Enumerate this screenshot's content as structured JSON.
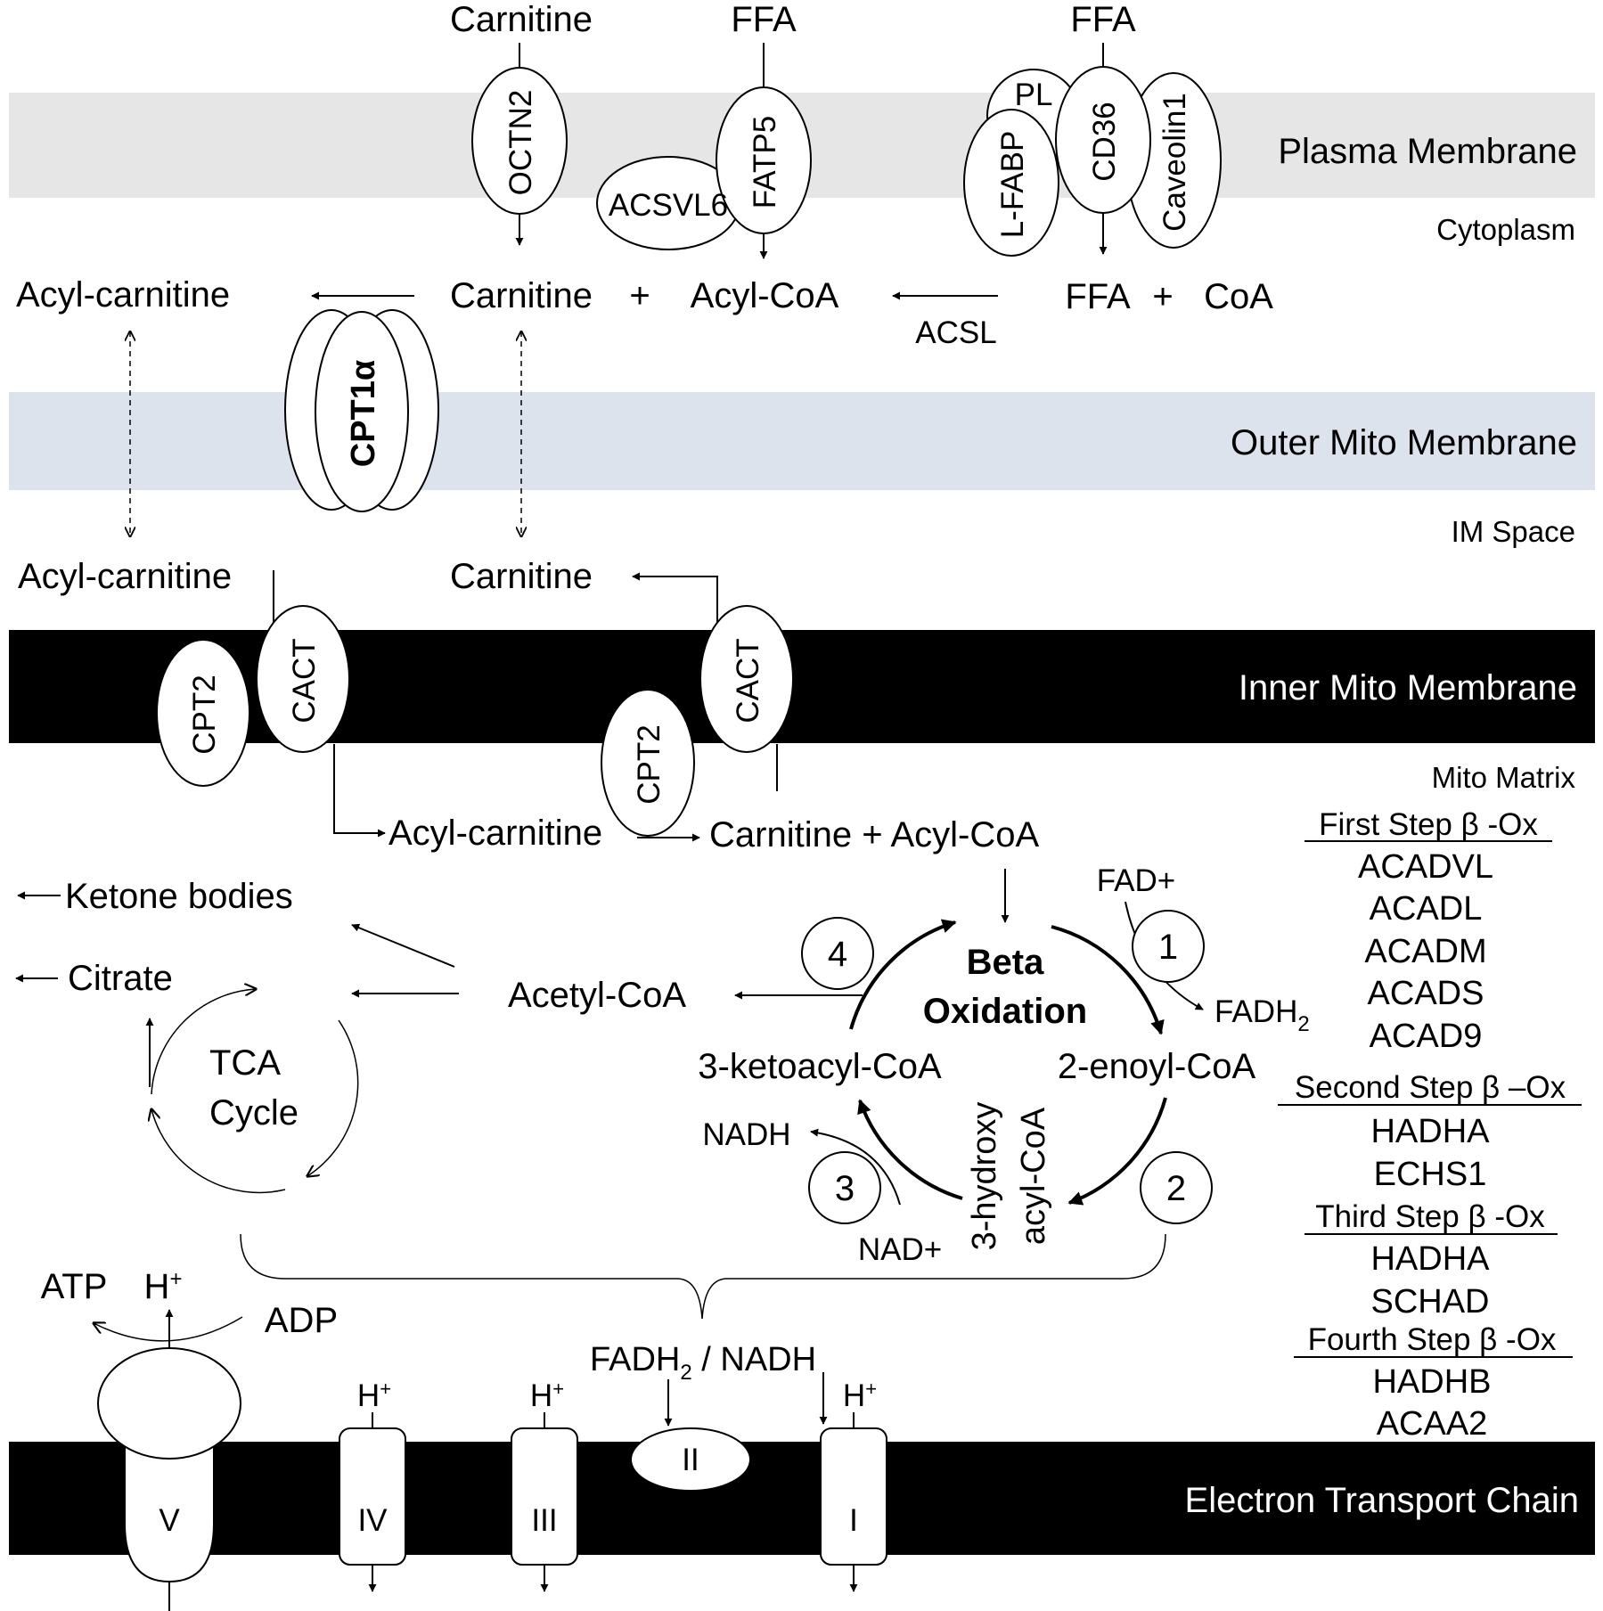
{
  "layers": {
    "plasma": "Plasma Membrane",
    "cytoplasm": "Cytoplasm",
    "outer": "Outer Mito Membrane",
    "im_space": "IM Space",
    "inner": "Inner Mito Membrane",
    "matrix": "Mito Matrix",
    "etc": "Electron Transport Chain"
  },
  "colors": {
    "plasma_band": "#e6e6e6",
    "outer_band": "#dde3ec",
    "inner_band": "#000000",
    "etc_band": "#000000"
  },
  "top": {
    "carnitine": "Carnitine",
    "ffa1": "FFA",
    "ffa2": "FFA",
    "octn2": "OCTN2",
    "fatp5": "FATP5",
    "acsvl6": "ACSVL6",
    "pl": "PL",
    "lfabp": "L-FABP",
    "cd36": "CD36",
    "caveolin1": "Caveolin1"
  },
  "cyto": {
    "acyl_carnitine": "Acyl-carnitine",
    "carnitine": "Carnitine",
    "plus1": "+",
    "acyl_coa": "Acyl-CoA",
    "ffa": "FFA",
    "plus2": "+",
    "coa": "CoA",
    "acsl": "ACSL",
    "cpt1a": "CPT1α"
  },
  "ims": {
    "acyl_carnitine": "Acyl-carnitine",
    "carnitine": "Carnitine",
    "cpt2_a": "CPT2",
    "cact_a": "CACT",
    "cpt2_b": "CPT2",
    "cact_b": "CACT"
  },
  "matrix": {
    "acyl_carnitine": "Acyl-carnitine",
    "carnitine_acyl_coa": "Carnitine + Acyl-CoA",
    "ketone": "Ketone bodies",
    "citrate": "Citrate",
    "tca1": "TCA",
    "tca2": "Cycle",
    "acetyl_coa": "Acetyl-CoA",
    "beta1": "Beta",
    "beta2": "Oxidation",
    "fad": "FAD+",
    "fadh": "FADH",
    "fadh_sub": "2",
    "enoyl": "2-enoyl-CoA",
    "ketoacyl": "3-ketoacyl-CoA",
    "hydroxy1": "3-hydroxy",
    "hydroxy2": "acyl-CoA",
    "nadh": "NADH",
    "nad": "NAD+",
    "step1": "1",
    "step2": "2",
    "step3": "3",
    "step4": "4"
  },
  "enzymes": {
    "first": "First Step β -Ox",
    "first_list": [
      "ACADVL",
      "ACADL",
      "ACADM",
      "ACADS",
      "ACAD9"
    ],
    "second": "Second Step β –Ox",
    "second_list": [
      "HADHA",
      "ECHS1"
    ],
    "third": "Third Step β -Ox",
    "third_list": [
      "HADHA",
      "SCHAD"
    ],
    "fourth": "Fourth Step β -Ox",
    "fourth_list": [
      "HADHB",
      "ACAA2"
    ]
  },
  "etc": {
    "atp": "ATP",
    "h_v": "H",
    "h_sup": "+",
    "adp": "ADP",
    "fadh_nadh_a": "FADH",
    "fadh_nadh_sub": "2",
    "fadh_nadh_b": " / NADH",
    "h_iv": "H",
    "h_iii": "H",
    "h_i": "H",
    "c_v": "V",
    "c_iv": "IV",
    "c_iii": "III",
    "c_ii": "II",
    "c_i": "I"
  }
}
